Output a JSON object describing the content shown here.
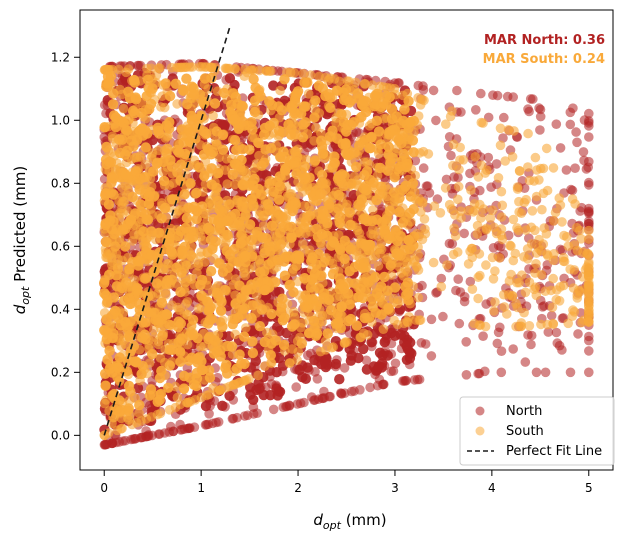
{
  "chart_data": {
    "type": "scatter",
    "xlabel_main": "d",
    "xlabel_sub": "opt",
    "xlabel_unit": " (mm)",
    "ylabel_main": "d",
    "ylabel_sub": "opt",
    "ylabel_unit": " Predicted (mm)",
    "xlim": [
      -0.25,
      5.25
    ],
    "ylim": [
      -0.11,
      1.35
    ],
    "xticks": [
      0,
      1,
      2,
      3,
      4,
      5
    ],
    "xtick_labels": [
      "0",
      "1",
      "2",
      "3",
      "4",
      "5"
    ],
    "yticks": [
      0.0,
      0.2,
      0.4,
      0.6,
      0.8,
      1.0,
      1.2
    ],
    "ytick_labels": [
      "0.0",
      "0.2",
      "0.4",
      "0.6",
      "0.8",
      "1.0",
      "1.2"
    ],
    "grid": false,
    "legend_position": "bottom-right",
    "perfect_fit_line": {
      "x": [
        0,
        1.3
      ],
      "y": [
        0,
        1.3
      ],
      "name": "Perfect Fit Line",
      "color": "#1a1a1a"
    },
    "series": [
      {
        "name": "North",
        "color": "#b22222",
        "mar_label": "MAR North: 0.36"
      },
      {
        "name": "South",
        "color": "#f9a93a",
        "mar_label": "MAR South: 0.24"
      }
    ],
    "approx_density_envelope": {
      "north": {
        "x": [
          0,
          1,
          2,
          3,
          4,
          5
        ],
        "y_min": [
          -0.03,
          0.03,
          0.1,
          0.17,
          0.2,
          0.2
        ],
        "y_max": [
          1.17,
          1.18,
          1.15,
          1.12,
          1.08,
          1.05
        ]
      },
      "south": {
        "x": [
          0,
          1,
          2,
          3,
          3.5,
          4,
          4.5,
          5
        ],
        "y_min": [
          0.0,
          0.12,
          0.24,
          0.35,
          0.38,
          0.34,
          0.35,
          0.36
        ],
        "y_max": [
          1.16,
          1.17,
          1.15,
          1.1,
          1.04,
          0.98,
          0.95,
          0.65
        ]
      }
    }
  }
}
